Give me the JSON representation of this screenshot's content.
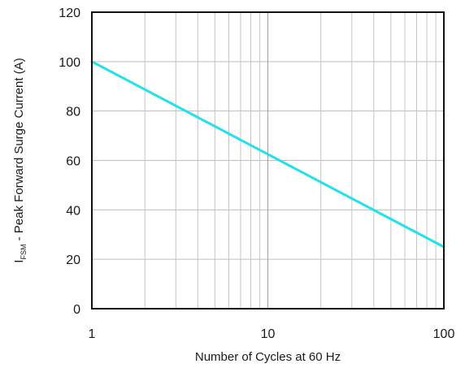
{
  "chart_data": {
    "type": "line",
    "xscale": "log",
    "xlim": [
      1,
      100
    ],
    "ylim": [
      0,
      120
    ],
    "xticks": [
      1,
      10,
      100
    ],
    "xtick_labels": [
      "1",
      "10",
      "100"
    ],
    "yticks": [
      0,
      20,
      40,
      60,
      80,
      100,
      120
    ],
    "ytick_labels": [
      "0",
      "20",
      "40",
      "60",
      "80",
      "100",
      "120"
    ],
    "grid": true,
    "xlabel": "Number of Cycles at 60 Hz",
    "ylabel": {
      "main": "I",
      "subscript": "FSM",
      "rest": " - Peak Forward Surge Current (A)"
    },
    "series": [
      {
        "color": "#22e0ec",
        "x": [
          1,
          100
        ],
        "y": [
          100,
          25
        ]
      }
    ]
  }
}
